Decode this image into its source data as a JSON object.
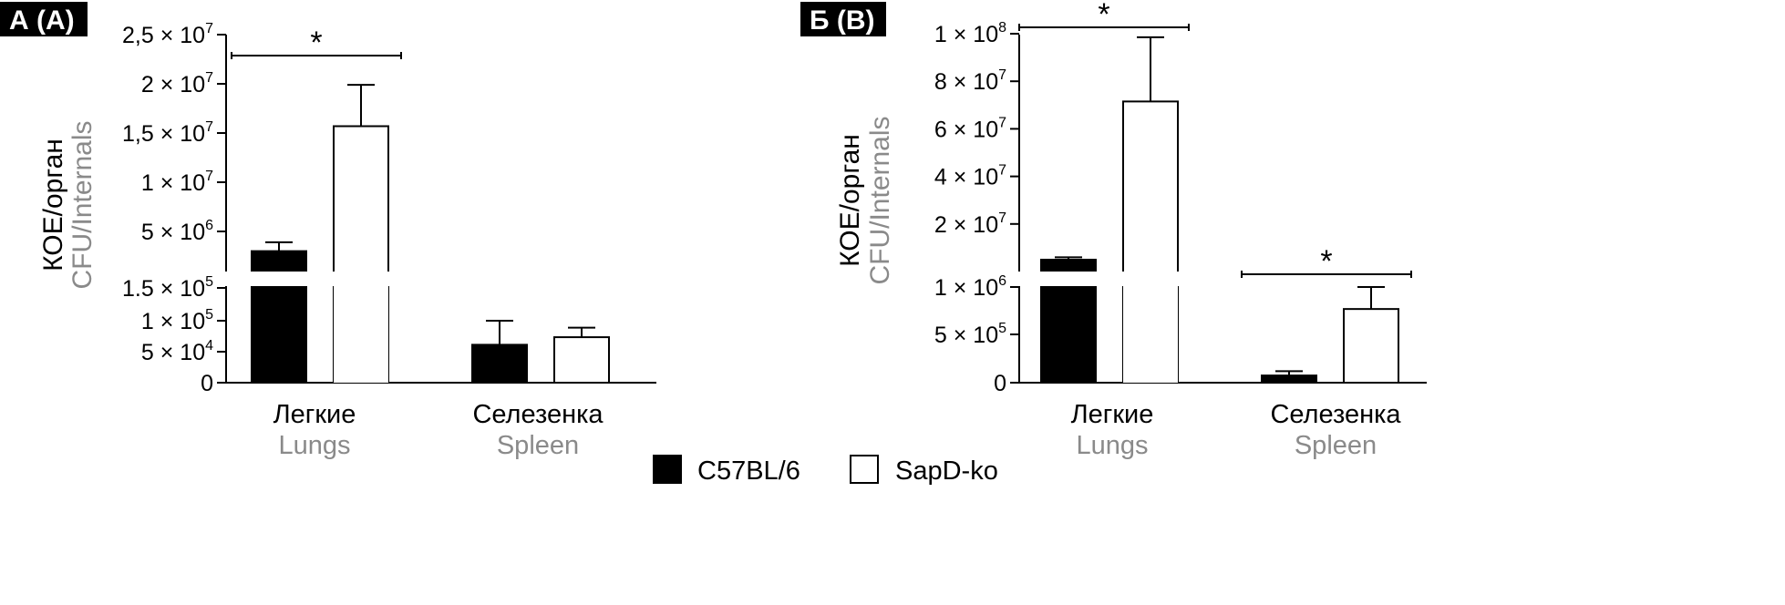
{
  "panels": {
    "a": {
      "label": "А (А)"
    },
    "b": {
      "label": "Б (B)"
    }
  },
  "legend": [
    {
      "name": "C57BL/6",
      "color": "#000000"
    },
    {
      "name": "SapD-ko",
      "color": "#ffffff"
    }
  ],
  "chart_data": [
    {
      "type": "bar",
      "panel": "А (А)",
      "ylabel": "КОЕ/орган",
      "ylabel_en": "CFU/Internals",
      "categories": [
        "Легкие",
        "Селезенка"
      ],
      "categories_en": [
        "Lungs",
        "Spleen"
      ],
      "y_axis_broken": true,
      "ylim_lower": [
        0,
        150000
      ],
      "ylim_upper": [
        0,
        25000000
      ],
      "yticks_lower": [
        {
          "mant": "",
          "exp": "",
          "plain": "0"
        },
        {
          "mant": "5 × 10",
          "exp": "4",
          "plain": ""
        },
        {
          "mant": "1 × 10",
          "exp": "5",
          "plain": ""
        },
        {
          "mant": "1.5 × 10",
          "exp": "5",
          "plain": ""
        }
      ],
      "yticks_upper": [
        {
          "mant": "5 × 10",
          "exp": "6",
          "plain": ""
        },
        {
          "mant": "1 × 10",
          "exp": "7",
          "plain": ""
        },
        {
          "mant": "1,5 × 10",
          "exp": "7",
          "plain": ""
        },
        {
          "mant": "2 × 10",
          "exp": "7",
          "plain": ""
        },
        {
          "mant": "2,5 × 10",
          "exp": "7",
          "plain": ""
        }
      ],
      "series": [
        {
          "name": "C57BL/6",
          "values": [
            3000000,
            60000
          ],
          "errors": [
            900000,
            38000
          ]
        },
        {
          "name": "SapD-ko",
          "values": [
            15700000,
            72000
          ],
          "errors": [
            4200000,
            15000
          ]
        }
      ],
      "significance": [
        {
          "category": "Легкие",
          "label": "*"
        }
      ]
    },
    {
      "type": "bar",
      "panel": "Б (B)",
      "ylabel": "КОЕ/орган",
      "ylabel_en": "CFU/Internals",
      "categories": [
        "Легкие",
        "Селезенка"
      ],
      "categories_en": [
        "Lungs",
        "Spleen"
      ],
      "y_axis_broken": true,
      "ylim_lower": [
        0,
        1000000
      ],
      "ylim_upper": [
        0,
        100000000
      ],
      "yticks_lower": [
        {
          "mant": "",
          "exp": "",
          "plain": "0"
        },
        {
          "mant": "5 × 10",
          "exp": "5",
          "plain": ""
        },
        {
          "mant": "1 × 10",
          "exp": "6",
          "plain": ""
        }
      ],
      "yticks_upper": [
        {
          "mant": "2 × 10",
          "exp": "7",
          "plain": ""
        },
        {
          "mant": "4 × 10",
          "exp": "7",
          "plain": ""
        },
        {
          "mant": "6 × 10",
          "exp": "7",
          "plain": ""
        },
        {
          "mant": "8 × 10",
          "exp": "7",
          "plain": ""
        },
        {
          "mant": "1 × 10",
          "exp": "8",
          "plain": ""
        }
      ],
      "series": [
        {
          "name": "C57BL/6",
          "values": [
            5000000,
            75000
          ],
          "errors": [
            1000000,
            45000
          ]
        },
        {
          "name": "SapD-ko",
          "values": [
            71500000,
            770000
          ],
          "errors": [
            27000000,
            230000
          ]
        }
      ],
      "significance": [
        {
          "category": "Легкие",
          "label": "*"
        },
        {
          "category": "Селезенка",
          "label": "*"
        }
      ]
    }
  ]
}
